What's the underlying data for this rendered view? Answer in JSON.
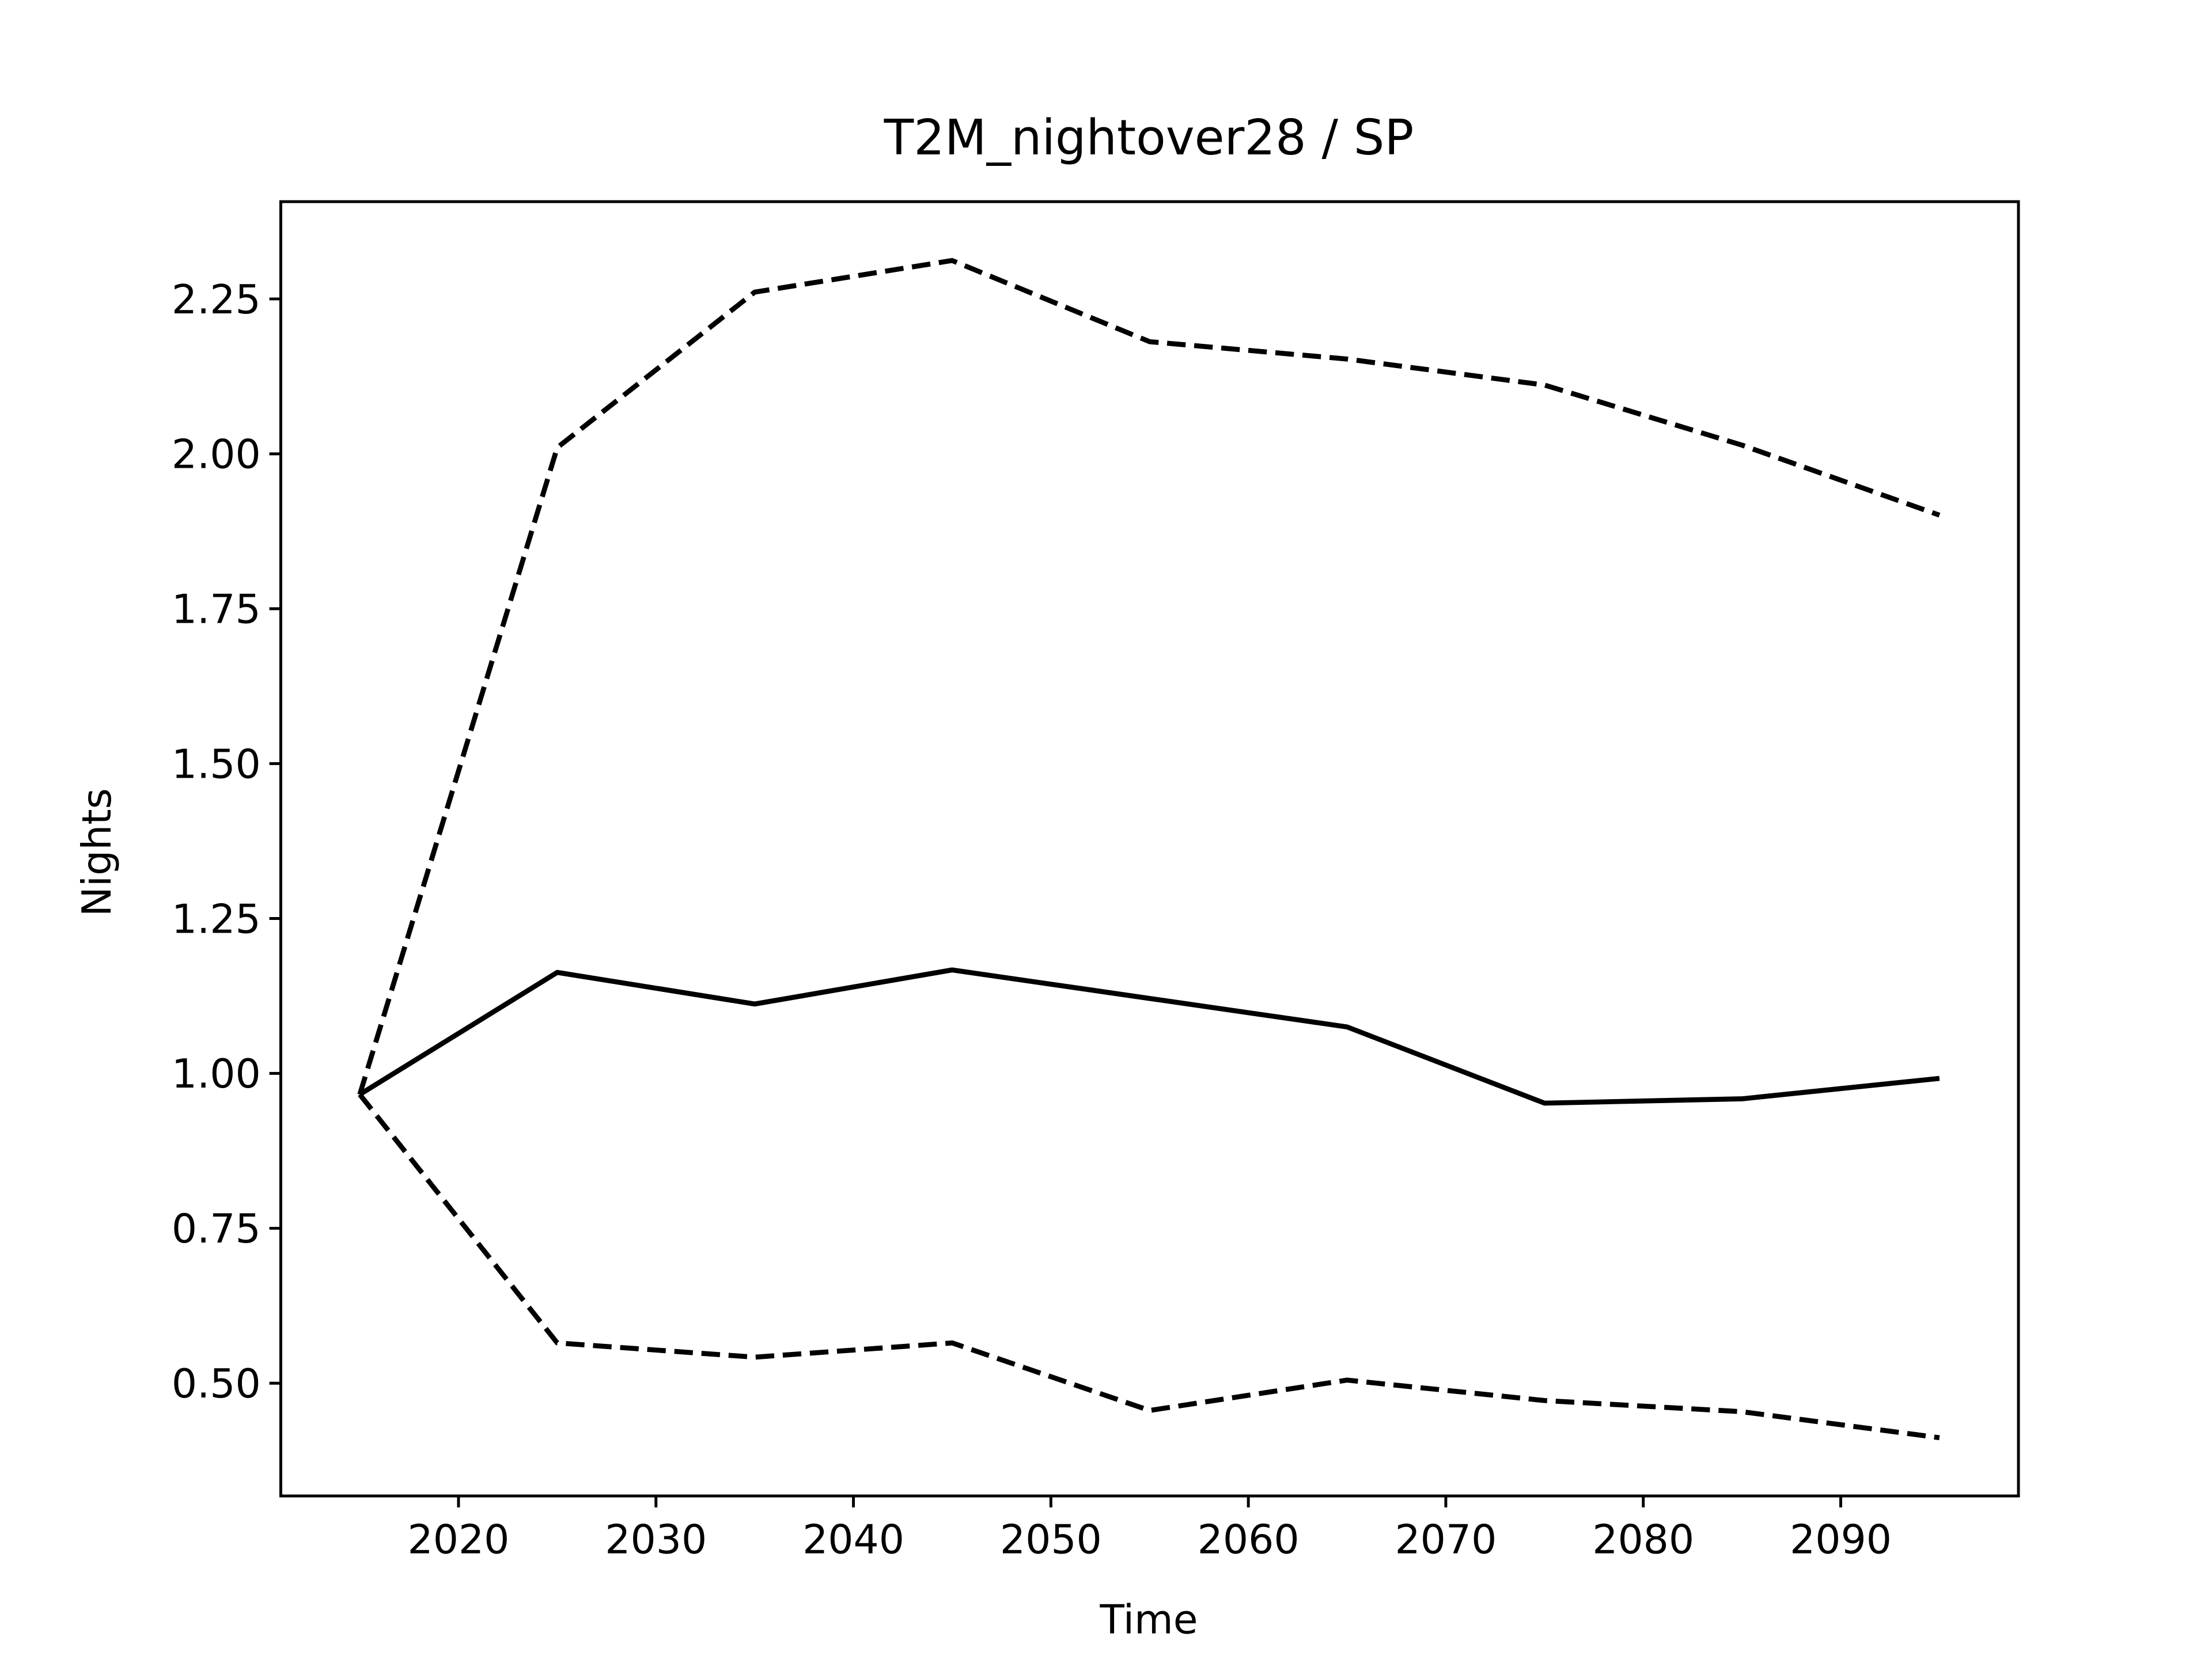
{
  "chart_data": {
    "type": "line",
    "title": "T2M_nightover28 / SP",
    "xlabel": "Time",
    "ylabel": "Nights",
    "x": [
      2015,
      2025,
      2035,
      2045,
      2055,
      2065,
      2075,
      2085,
      2095
    ],
    "series": [
      {
        "color": "#000000",
        "dashed": false,
        "values": [
          0.966,
          1.163,
          1.112,
          1.167,
          1.121,
          1.075,
          0.952,
          0.959,
          0.992
        ]
      },
      {
        "color": "#000000",
        "dashed": true,
        "values": [
          0.966,
          2.01,
          2.261,
          2.312,
          2.181,
          2.153,
          2.111,
          2.014,
          1.901
        ]
      },
      {
        "color": "#000000",
        "dashed": true,
        "values": [
          0.966,
          0.565,
          0.542,
          0.565,
          0.456,
          0.505,
          0.472,
          0.454,
          0.412
        ]
      }
    ],
    "xlim": [
      2011,
      2099
    ],
    "ylim": [
      0.318,
      2.407
    ],
    "xticks": [
      2020,
      2030,
      2040,
      2050,
      2060,
      2070,
      2080,
      2090
    ],
    "yticks": [
      {
        "value": 0.5,
        "label": "0.50"
      },
      0.75,
      {
        "value": 1,
        "label": "1.00"
      },
      1.25,
      {
        "value": 1.5,
        "label": "1.50"
      },
      1.75,
      {
        "value": 2,
        "label": "2.00"
      },
      2.25
    ],
    "grid": false
  }
}
